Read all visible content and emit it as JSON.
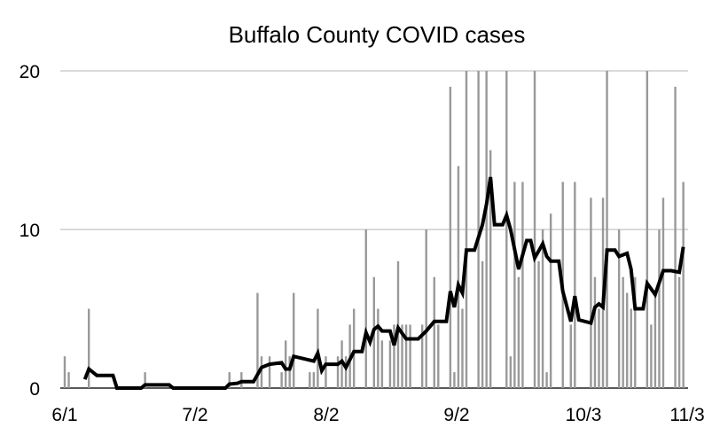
{
  "chart_data": {
    "type": "bar",
    "title": "Buffalo County COVID cases",
    "xlabel": "",
    "ylabel": "",
    "ylim": [
      0,
      20
    ],
    "y_ticks": [
      "0",
      "10",
      "20"
    ],
    "x_ticks": [
      "6/1",
      "7/2",
      "8/2",
      "9/2",
      "10/3",
      "11/3"
    ],
    "grid": true,
    "bar_color": "#999999",
    "line_color": "#000000",
    "daily_values_from": "6/1",
    "bars": [
      2,
      1,
      0,
      0,
      0,
      0,
      5,
      0,
      0,
      0,
      0,
      0,
      0,
      0,
      0,
      0,
      0,
      0,
      0,
      0,
      1,
      0,
      0,
      0,
      0,
      0,
      0,
      0,
      0,
      0,
      0,
      0,
      0,
      0,
      0,
      0,
      0,
      0,
      0,
      0,
      0,
      1,
      0,
      0,
      1,
      0,
      0,
      0,
      6,
      2,
      0,
      2,
      0,
      0,
      1,
      3,
      2,
      6,
      0,
      0,
      0,
      1,
      1,
      5,
      0,
      2,
      0,
      0,
      2,
      3,
      2,
      4,
      5,
      0,
      0,
      10,
      0,
      7,
      5,
      3,
      0,
      3,
      4,
      8,
      4,
      4,
      4,
      0,
      0,
      4,
      10,
      0,
      7,
      4,
      0,
      0,
      19,
      1,
      14,
      5,
      20,
      0,
      0,
      20,
      8,
      20,
      15,
      0,
      0,
      0,
      20,
      2,
      13,
      7,
      13,
      0,
      0,
      20,
      8,
      10,
      1,
      11,
      0,
      0,
      13,
      0,
      4,
      13,
      0,
      0,
      0,
      12,
      7,
      5,
      12,
      20,
      0,
      0,
      10,
      7,
      6,
      5,
      7,
      0,
      0,
      20,
      4,
      6,
      10,
      12,
      0,
      0,
      19,
      7,
      13
    ],
    "line": [
      [
        "6/6",
        0.55
      ],
      [
        "6/7",
        1.2
      ],
      [
        "6/9",
        0.8
      ],
      [
        "6/13",
        0.8
      ],
      [
        "6/14",
        0
      ],
      [
        "6/20",
        0
      ],
      [
        "6/21",
        0.2
      ],
      [
        "6/27",
        0.2
      ],
      [
        "6/28",
        0
      ],
      [
        "7/11",
        0
      ],
      [
        "7/12",
        0.25
      ],
      [
        "7/14",
        0.3
      ],
      [
        "7/15",
        0.4
      ],
      [
        "7/18",
        0.4
      ],
      [
        "7/20",
        1.3
      ],
      [
        "7/22",
        1.5
      ],
      [
        "7/25",
        1.6
      ],
      [
        "7/26",
        1.2
      ],
      [
        "7/27",
        1.2
      ],
      [
        "7/28",
        2.0
      ],
      [
        "8/2",
        1.7
      ],
      [
        "8/3",
        2.2
      ],
      [
        "8/4",
        1.1
      ],
      [
        "8/5",
        1.5
      ],
      [
        "8/8",
        1.5
      ],
      [
        "8/9",
        1.7
      ],
      [
        "8/10",
        1.3
      ],
      [
        "8/12",
        2.3
      ],
      [
        "8/14",
        2.3
      ],
      [
        "8/15",
        3.5
      ],
      [
        "8/16",
        2.9
      ],
      [
        "8/17",
        3.7
      ],
      [
        "8/18",
        3.9
      ],
      [
        "8/19",
        3.6
      ],
      [
        "8/21",
        3.6
      ],
      [
        "8/22",
        2.7
      ],
      [
        "8/23",
        3.8
      ],
      [
        "8/25",
        3.1
      ],
      [
        "8/28",
        3.1
      ],
      [
        "8/30",
        3.6
      ],
      [
        "9/1",
        4.2
      ],
      [
        "9/4",
        4.2
      ],
      [
        "9/5",
        6.1
      ],
      [
        "9/6",
        5.1
      ],
      [
        "9/7",
        6.5
      ],
      [
        "9/8",
        6.0
      ],
      [
        "9/9",
        8.7
      ],
      [
        "9/11",
        8.7
      ],
      [
        "9/13",
        10.3
      ],
      [
        "9/14",
        11.6
      ],
      [
        "9/15",
        13.3
      ],
      [
        "9/16",
        10.3
      ],
      [
        "9/18",
        10.3
      ],
      [
        "9/19",
        10.9
      ],
      [
        "9/20",
        10.0
      ],
      [
        "9/22",
        7.5
      ],
      [
        "9/24",
        9.3
      ],
      [
        "9/25",
        9.3
      ],
      [
        "9/26",
        8.2
      ],
      [
        "9/28",
        9.1
      ],
      [
        "9/29",
        8.3
      ],
      [
        "9/30",
        8.0
      ],
      [
        "10/2",
        8.0
      ],
      [
        "10/3",
        6.1
      ],
      [
        "10/5",
        4.2
      ],
      [
        "10/6",
        5.8
      ],
      [
        "10/7",
        4.3
      ],
      [
        "10/10",
        4.1
      ],
      [
        "10/11",
        5.1
      ],
      [
        "10/12",
        5.3
      ],
      [
        "10/13",
        5.1
      ],
      [
        "10/14",
        8.7
      ],
      [
        "10/16",
        8.7
      ],
      [
        "10/17",
        8.3
      ],
      [
        "10/19",
        8.5
      ],
      [
        "10/20",
        7.5
      ],
      [
        "10/21",
        5.0
      ],
      [
        "10/23",
        5.0
      ],
      [
        "10/24",
        6.6
      ],
      [
        "10/26",
        5.9
      ],
      [
        "10/28",
        7.4
      ],
      [
        "10/30",
        7.4
      ],
      [
        "11/1",
        7.3
      ],
      [
        "11/2",
        8.9
      ]
    ]
  }
}
